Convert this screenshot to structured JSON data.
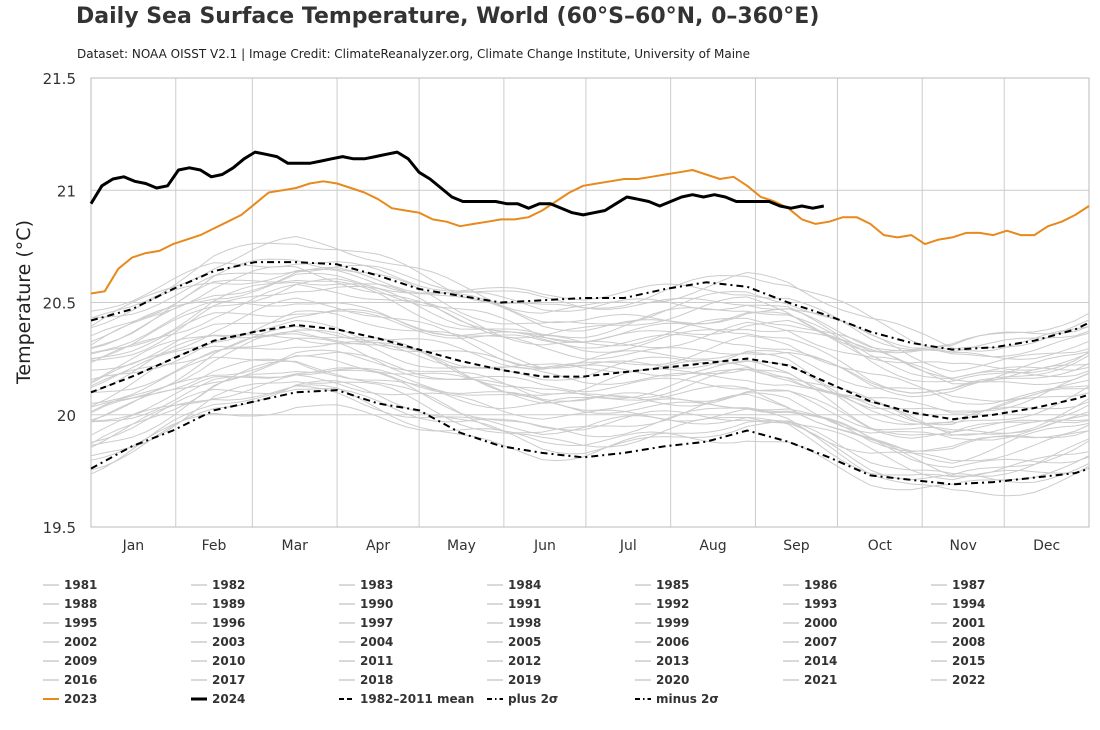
{
  "title": "Daily Sea Surface Temperature, World (60°S–60°N, 0–360°E)",
  "subtitle": "Dataset: NOAA OISST V2.1 | Image Credit: ClimateReanalyzer.org, Climate Change Institute, University of Maine",
  "chart_data": {
    "type": "line",
    "title": "Daily Sea Surface Temperature, World (60°S–60°N, 0–360°E)",
    "xlabel": "",
    "ylabel": "Temperature (°C)",
    "xlim": [
      0,
      365
    ],
    "ylim": [
      19.5,
      21.5
    ],
    "y_ticks": [
      "19.5",
      "20",
      "20.5",
      "21",
      "21.5"
    ],
    "y_tick_values": [
      19.5,
      20,
      20.5,
      21,
      21.5
    ],
    "months": [
      "Jan",
      "Feb",
      "Mar",
      "Apr",
      "May",
      "Jun",
      "Jul",
      "Aug",
      "Sep",
      "Oct",
      "Nov",
      "Dec"
    ],
    "grid": true,
    "legend_position": "bottom",
    "colors": {
      "past_years": "#cccccc",
      "y2023": "#e8891c",
      "y2024": "#000000",
      "mean": "#000000",
      "grid": "#cccccc"
    },
    "past_years": [
      "1981",
      "1982",
      "1983",
      "1984",
      "1985",
      "1986",
      "1987",
      "1988",
      "1989",
      "1990",
      "1991",
      "1992",
      "1993",
      "1994",
      "1995",
      "1996",
      "1997",
      "1998",
      "1999",
      "2000",
      "2001",
      "2002",
      "2003",
      "2004",
      "2005",
      "2006",
      "2007",
      "2008",
      "2009",
      "2010",
      "2011",
      "2012",
      "2013",
      "2014",
      "2015",
      "2016",
      "2017",
      "2018",
      "2019",
      "2020",
      "2021",
      "2022"
    ],
    "series": [
      {
        "name": "2023",
        "style": "orange-solid",
        "x": [
          0,
          5,
          10,
          15,
          20,
          25,
          30,
          35,
          40,
          45,
          50,
          55,
          60,
          65,
          70,
          75,
          80,
          85,
          90,
          95,
          100,
          105,
          110,
          115,
          120,
          125,
          130,
          135,
          140,
          145,
          150,
          155,
          160,
          165,
          170,
          175,
          180,
          185,
          190,
          195,
          200,
          205,
          210,
          215,
          220,
          225,
          230,
          235,
          240,
          245,
          250,
          255,
          260,
          265,
          270,
          275,
          280,
          285,
          290,
          295,
          300,
          305,
          310,
          315,
          320,
          325,
          330,
          335,
          340,
          345,
          350,
          355,
          360,
          365
        ],
        "y": [
          20.54,
          20.55,
          20.65,
          20.7,
          20.72,
          20.73,
          20.76,
          20.78,
          20.8,
          20.83,
          20.86,
          20.89,
          20.94,
          20.99,
          21.0,
          21.01,
          21.03,
          21.04,
          21.03,
          21.01,
          20.99,
          20.96,
          20.92,
          20.91,
          20.9,
          20.87,
          20.86,
          20.84,
          20.85,
          20.86,
          20.87,
          20.87,
          20.88,
          20.91,
          20.95,
          20.99,
          21.02,
          21.03,
          21.04,
          21.05,
          21.05,
          21.06,
          21.07,
          21.08,
          21.09,
          21.07,
          21.05,
          21.06,
          21.02,
          20.97,
          20.95,
          20.92,
          20.87,
          20.85,
          20.86,
          20.88,
          20.88,
          20.85,
          20.8,
          20.79,
          20.8,
          20.76,
          20.78,
          20.79,
          20.81,
          20.81,
          20.8,
          20.82,
          20.8,
          20.8,
          20.84,
          20.86,
          20.89,
          20.93
        ]
      },
      {
        "name": "2024",
        "style": "black-thick",
        "x": [
          0,
          4,
          8,
          12,
          16,
          20,
          24,
          28,
          32,
          36,
          40,
          44,
          48,
          52,
          56,
          60,
          64,
          68,
          72,
          76,
          80,
          84,
          88,
          92,
          96,
          100,
          104,
          108,
          112,
          116,
          120,
          124,
          128,
          132,
          136,
          140,
          144,
          148,
          152,
          156,
          160,
          164,
          168,
          172,
          176,
          180,
          184,
          188,
          192,
          196,
          200,
          204,
          208,
          212,
          216,
          220,
          224,
          228,
          232,
          236,
          240,
          244,
          248,
          252,
          256,
          260,
          264,
          268
        ],
        "y": [
          20.94,
          21.02,
          21.05,
          21.06,
          21.04,
          21.03,
          21.01,
          21.02,
          21.09,
          21.1,
          21.09,
          21.06,
          21.07,
          21.1,
          21.14,
          21.17,
          21.16,
          21.15,
          21.12,
          21.12,
          21.12,
          21.13,
          21.14,
          21.15,
          21.14,
          21.14,
          21.15,
          21.16,
          21.17,
          21.14,
          21.08,
          21.05,
          21.01,
          20.97,
          20.95,
          20.95,
          20.95,
          20.95,
          20.94,
          20.94,
          20.92,
          20.94,
          20.94,
          20.92,
          20.9,
          20.89,
          20.9,
          20.91,
          20.94,
          20.97,
          20.96,
          20.95,
          20.93,
          20.95,
          20.97,
          20.98,
          20.97,
          20.98,
          20.97,
          20.95,
          20.95,
          20.95,
          20.95,
          20.93,
          20.92,
          20.93,
          20.92,
          20.93
        ]
      },
      {
        "name": "1982–2011 mean",
        "style": "black-dashed",
        "x": [
          0,
          15,
          30,
          45,
          60,
          75,
          90,
          105,
          120,
          135,
          150,
          165,
          180,
          195,
          210,
          225,
          240,
          255,
          270,
          285,
          300,
          315,
          330,
          345,
          360,
          365
        ],
        "y": [
          20.1,
          20.17,
          20.25,
          20.33,
          20.37,
          20.4,
          20.38,
          20.34,
          20.29,
          20.24,
          20.2,
          20.17,
          20.17,
          20.19,
          20.21,
          20.23,
          20.25,
          20.22,
          20.14,
          20.06,
          20.01,
          19.98,
          20.0,
          20.03,
          20.07,
          20.09
        ]
      },
      {
        "name": "plus 2σ",
        "style": "black-dashed-dot",
        "x": [
          0,
          15,
          30,
          45,
          60,
          75,
          90,
          105,
          120,
          135,
          150,
          165,
          180,
          195,
          210,
          225,
          240,
          255,
          270,
          285,
          300,
          315,
          330,
          345,
          360,
          365
        ],
        "y": [
          20.42,
          20.47,
          20.56,
          20.64,
          20.68,
          20.68,
          20.67,
          20.62,
          20.56,
          20.53,
          20.5,
          20.51,
          20.52,
          20.52,
          20.56,
          20.59,
          20.57,
          20.5,
          20.44,
          20.37,
          20.32,
          20.29,
          20.3,
          20.33,
          20.38,
          20.41
        ]
      },
      {
        "name": "minus 2σ",
        "style": "black-dashed-dot",
        "x": [
          0,
          15,
          30,
          45,
          60,
          75,
          90,
          105,
          120,
          135,
          150,
          165,
          180,
          195,
          210,
          225,
          240,
          255,
          270,
          285,
          300,
          315,
          330,
          345,
          360,
          365
        ],
        "y": [
          19.76,
          19.86,
          19.93,
          20.02,
          20.06,
          20.1,
          20.11,
          20.05,
          20.02,
          19.92,
          19.86,
          19.83,
          19.81,
          19.83,
          19.86,
          19.88,
          19.93,
          19.88,
          19.81,
          19.73,
          19.71,
          19.69,
          19.7,
          19.72,
          19.74,
          19.76
        ]
      }
    ]
  },
  "legend": {
    "years": [
      "1981",
      "1982",
      "1983",
      "1984",
      "1985",
      "1986",
      "1987",
      "1988",
      "1989",
      "1990",
      "1991",
      "1992",
      "1993",
      "1994",
      "1995",
      "1996",
      "1997",
      "1998",
      "1999",
      "2000",
      "2001",
      "2002",
      "2003",
      "2004",
      "2005",
      "2006",
      "2007",
      "2008",
      "2009",
      "2010",
      "2011",
      "2012",
      "2013",
      "2014",
      "2015",
      "2016",
      "2017",
      "2018",
      "2019",
      "2020",
      "2021",
      "2022"
    ],
    "special": [
      {
        "label": "2023",
        "style": "orange-solid"
      },
      {
        "label": "2024",
        "style": "black-thick"
      },
      {
        "label": "1982–2011 mean",
        "style": "black-dashed"
      },
      {
        "label": "plus 2σ",
        "style": "black-dashed-dot"
      },
      {
        "label": "minus 2σ",
        "style": "black-dashed-dot"
      }
    ]
  }
}
